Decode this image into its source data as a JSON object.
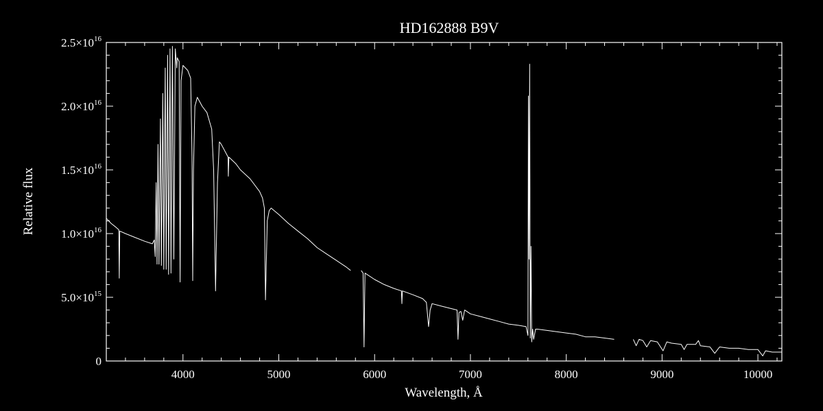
{
  "chart_data": {
    "type": "line",
    "title": "HD162888   B9V",
    "xlabel": "Wavelength, Å",
    "ylabel": "Relative flux",
    "xlim": [
      3200,
      10250
    ],
    "ylim": [
      0,
      2.5e+16
    ],
    "grid": false,
    "x_ticks": [
      {
        "value": 4000,
        "label": "4000"
      },
      {
        "value": 5000,
        "label": "5000"
      },
      {
        "value": 6000,
        "label": "6000"
      },
      {
        "value": 7000,
        "label": "7000"
      },
      {
        "value": 8000,
        "label": "8000"
      },
      {
        "value": 9000,
        "label": "9000"
      },
      {
        "value": 10000,
        "label": "10000"
      }
    ],
    "y_ticks": [
      {
        "value": 0,
        "mant": "0",
        "exp": ""
      },
      {
        "value": 5000000000000000.0,
        "mant": "5.0×10",
        "exp": "15"
      },
      {
        "value": 1e+16,
        "mant": "1.0×10",
        "exp": "16"
      },
      {
        "value": 1.5e+16,
        "mant": "1.5×10",
        "exp": "16"
      },
      {
        "value": 2e+16,
        "mant": "2.0×10",
        "exp": "16"
      },
      {
        "value": 2.5e+16,
        "mant": "2.5×10",
        "exp": "16"
      }
    ],
    "series": [
      {
        "name": "",
        "color": "#ffffff",
        "segments": [
          [
            [
              3200,
              1.12e+16
            ],
            [
              3250,
              1.08e+16
            ],
            [
              3300,
              1.05e+16
            ],
            [
              3330,
              1.03e+16
            ],
            [
              3335,
              6500000000000000.0
            ],
            [
              3340,
              1.02e+16
            ],
            [
              3400,
              1e+16
            ],
            [
              3500,
              9700000000000000.0
            ],
            [
              3600,
              9400000000000000.0
            ],
            [
              3680,
              9200000000000000.0
            ],
            [
              3700,
              9500000000000000.0
            ],
            [
              3710,
              8200000000000000.0
            ],
            [
              3720,
              1.4e+16
            ],
            [
              3730,
              7600000000000000.0
            ],
            [
              3740,
              1.7e+16
            ],
            [
              3750,
              7600000000000000.0
            ],
            [
              3765,
              1.9e+16
            ],
            [
              3775,
              7500000000000000.0
            ],
            [
              3790,
              2.1e+16
            ],
            [
              3800,
              7200000000000000.0
            ],
            [
              3815,
              2.3e+16
            ],
            [
              3825,
              7200000000000000.0
            ],
            [
              3840,
              2.4e+16
            ],
            [
              3850,
              6800000000000000.0
            ],
            [
              3865,
              2.45e+16
            ],
            [
              3875,
              6900000000000000.0
            ],
            [
              3890,
              2.47e+16
            ],
            [
              3905,
              8000000000000000.0
            ],
            [
              3920,
              2.45e+16
            ],
            [
              3935,
              2.3e+16
            ],
            [
              3940,
              2.38e+16
            ],
            [
              3960,
              2.35e+16
            ],
            [
              3970,
              6200000000000000.0
            ],
            [
              3980,
              2.2e+16
            ],
            [
              4000,
              2.32e+16
            ],
            [
              4050,
              2.28e+16
            ],
            [
              4080,
              2.22e+16
            ],
            [
              4095,
              1.6e+16
            ],
            [
              4102,
              6300000000000000.0
            ],
            [
              4110,
              1.5e+16
            ],
            [
              4125,
              2e+16
            ],
            [
              4150,
              2.07e+16
            ],
            [
              4200,
              2e+16
            ],
            [
              4250,
              1.95e+16
            ],
            [
              4300,
              1.82e+16
            ],
            [
              4320,
              1.5e+16
            ],
            [
              4340,
              5500000000000000.0
            ],
            [
              4360,
              1.4e+16
            ],
            [
              4380,
              1.72e+16
            ],
            [
              4400,
              1.7e+16
            ],
            [
              4471,
              1.6e+16
            ],
            [
              4473,
              1.45e+16
            ],
            [
              4480,
              1.6e+16
            ],
            [
              4550,
              1.55e+16
            ],
            [
              4600,
              1.5e+16
            ],
            [
              4700,
              1.43e+16
            ],
            [
              4800,
              1.33e+16
            ],
            [
              4830,
              1.28e+16
            ],
            [
              4850,
              1.2e+16
            ],
            [
              4861,
              4800000000000000.0
            ],
            [
              4880,
              1.1e+16
            ],
            [
              4900,
              1.18e+16
            ],
            [
              4920,
              1.2e+16
            ],
            [
              5000,
              1.15e+16
            ],
            [
              5100,
              1.08e+16
            ],
            [
              5200,
              1.02e+16
            ],
            [
              5300,
              9600000000000000.0
            ],
            [
              5400,
              8900000000000000.0
            ],
            [
              5500,
              8400000000000000.0
            ],
            [
              5600,
              7900000000000000.0
            ],
            [
              5700,
              7400000000000000.0
            ],
            [
              5750,
              7100000000000000.0
            ]
          ],
          [
            [
              5860,
              7100000000000000.0
            ],
            [
              5880,
              6900000000000000.0
            ],
            [
              5890,
              1100000000000000.0
            ],
            [
              5896,
              5000000000000000.0
            ],
            [
              5900,
              6900000000000000.0
            ],
            [
              6000,
              6400000000000000.0
            ],
            [
              6100,
              6000000000000000.0
            ],
            [
              6200,
              5700000000000000.0
            ],
            [
              6280,
              5500000000000000.0
            ],
            [
              6285,
              4500000000000000.0
            ],
            [
              6290,
              5500000000000000.0
            ],
            [
              6400,
              5200000000000000.0
            ],
            [
              6500,
              4900000000000000.0
            ],
            [
              6540,
              4600000000000000.0
            ],
            [
              6563,
              2700000000000000.0
            ],
            [
              6580,
              4000000000000000.0
            ],
            [
              6600,
              4500000000000000.0
            ],
            [
              6700,
              4300000000000000.0
            ],
            [
              6860,
              4000000000000000.0
            ],
            [
              6870,
              1700000000000000.0
            ],
            [
              6880,
              3800000000000000.0
            ],
            [
              6900,
              3900000000000000.0
            ],
            [
              6920,
              3200000000000000.0
            ],
            [
              6940,
              4000000000000000.0
            ],
            [
              7000,
              3700000000000000.0
            ],
            [
              7100,
              3500000000000000.0
            ],
            [
              7200,
              3300000000000000.0
            ],
            [
              7300,
              3100000000000000.0
            ],
            [
              7400,
              2900000000000000.0
            ],
            [
              7500,
              2800000000000000.0
            ],
            [
              7580,
              2700000000000000.0
            ],
            [
              7600,
              2000000000000000.0
            ],
            [
              7605,
              2.08e+16
            ],
            [
              7612,
              8000000000000000.0
            ],
            [
              7618,
              2.33e+16
            ],
            [
              7625,
              1800000000000000.0
            ],
            [
              7632,
              9000000000000000.0
            ],
            [
              7640,
              1500000000000000.0
            ],
            [
              7650,
              2500000000000000.0
            ],
            [
              7660,
              1700000000000000.0
            ],
            [
              7680,
              2500000000000000.0
            ],
            [
              7700,
              2500000000000000.0
            ],
            [
              7800,
              2400000000000000.0
            ],
            [
              7900,
              2300000000000000.0
            ],
            [
              8000,
              2200000000000000.0
            ],
            [
              8100,
              2100000000000000.0
            ],
            [
              8200,
              1900000000000000.0
            ],
            [
              8300,
              1900000000000000.0
            ],
            [
              8400,
              1800000000000000.0
            ],
            [
              8500,
              1700000000000000.0
            ]
          ],
          [
            [
              8700,
              1700000000000000.0
            ],
            [
              8730,
              1200000000000000.0
            ],
            [
              8760,
              1700000000000000.0
            ],
            [
              8800,
              1600000000000000.0
            ],
            [
              8840,
              1100000000000000.0
            ],
            [
              8880,
              1600000000000000.0
            ],
            [
              8950,
              1500000000000000.0
            ],
            [
              9010,
              800000000000000.0
            ],
            [
              9050,
              1500000000000000.0
            ],
            [
              9100,
              1400000000000000.0
            ],
            [
              9200,
              1300000000000000.0
            ],
            [
              9230,
              900000000000000.0
            ],
            [
              9260,
              1300000000000000.0
            ],
            [
              9350,
              1300000000000000.0
            ],
            [
              9380,
              1600000000000000.0
            ],
            [
              9400,
              1200000000000000.0
            ],
            [
              9500,
              1100000000000000.0
            ],
            [
              9550,
              600000000000000.0
            ],
            [
              9600,
              1100000000000000.0
            ],
            [
              9700,
              1000000000000000.0
            ],
            [
              9800,
              1000000000000000.0
            ],
            [
              9900,
              900000000000000.0
            ],
            [
              10000,
              900000000000000.0
            ],
            [
              10050,
              400000000000000.0
            ],
            [
              10080,
              800000000000000.0
            ],
            [
              10150,
              700000000000000.0
            ],
            [
              10250,
              700000000000000.0
            ]
          ]
        ]
      }
    ]
  }
}
